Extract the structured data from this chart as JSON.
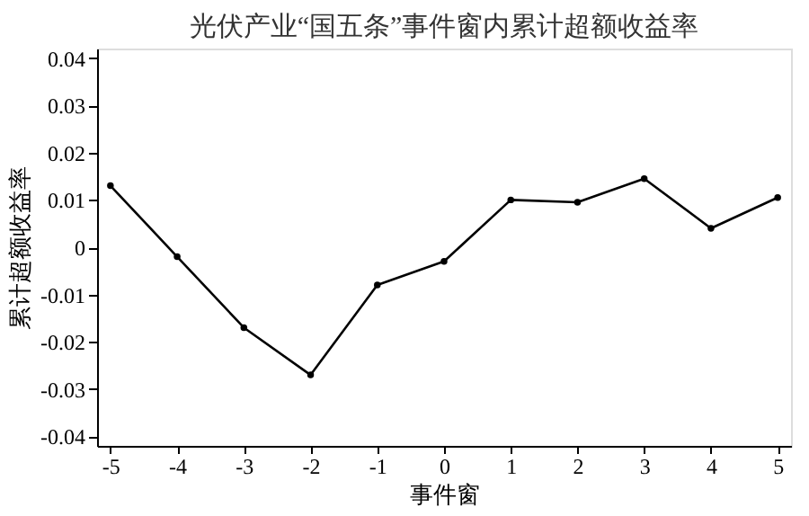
{
  "chart_data": {
    "type": "line",
    "title": "光伏产业“国五条”事件窗内累计超额收益率",
    "xlabel": "事件窗",
    "ylabel": "累计超额收益率",
    "x": [
      -5,
      -4,
      -3,
      -2,
      -1,
      0,
      1,
      2,
      3,
      4,
      5
    ],
    "series": [
      {
        "color": "#000000",
        "values": [
          0.013,
          -0.002,
          -0.017,
          -0.027,
          -0.008,
          -0.003,
          0.01,
          0.0095,
          0.0145,
          0.004,
          0.0105
        ]
      }
    ],
    "xlim": [
      -5.2,
      5.2
    ],
    "xticks": [
      -5,
      -4,
      -3,
      -2,
      -1,
      0,
      1,
      2,
      3,
      4,
      5
    ],
    "ylim": [
      -0.042,
      0.042
    ],
    "yticks": [
      -0.04,
      -0.03,
      -0.02,
      -0.01,
      0,
      0.01,
      0.02,
      0.03,
      0.04
    ],
    "grid": false,
    "marker": "circle",
    "line_style": "solid"
  }
}
